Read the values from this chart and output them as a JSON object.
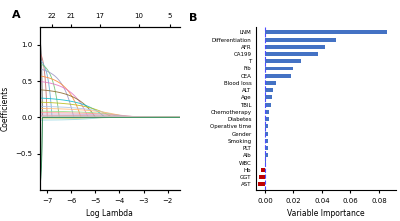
{
  "panel_A": {
    "xlabel": "Log Lambda",
    "ylabel": "Coefficients",
    "top_ticks": [
      22,
      21,
      17,
      10,
      5
    ],
    "top_tick_positions": [
      -6.8,
      -6.0,
      -4.8,
      -3.2,
      -1.9
    ],
    "xlim": [
      -7.3,
      -1.5
    ],
    "ylim": [
      -1.0,
      1.25
    ],
    "yticks": [
      -0.5,
      0.0,
      0.5,
      1.0
    ],
    "final_coeffs": [
      1.12,
      0.93,
      0.83,
      0.78,
      0.7,
      0.6,
      0.52,
      0.4,
      0.28,
      0.22,
      0.16,
      0.13,
      0.09,
      0.07,
      0.05,
      0.03,
      0.02,
      0.01,
      -0.02,
      -0.04,
      -0.85,
      -0.97
    ],
    "entry_points": [
      -7.2,
      -7.0,
      -6.8,
      -6.5,
      -5.9,
      -5.6,
      -5.3,
      -5.0,
      -4.6,
      -4.3,
      -4.0,
      -3.7,
      -3.5,
      -3.2,
      -3.0,
      -2.8,
      -2.6,
      -2.4,
      -4.4,
      -4.7,
      -7.2,
      -7.2
    ],
    "colors": [
      "#5a5a5a",
      "#c87070",
      "#6baed6",
      "#74c476",
      "#9e9ac8",
      "#fd8d3c",
      "#e377c2",
      "#8c6d31",
      "#17becf",
      "#bcbd22",
      "#aec7e8",
      "#ffbb78",
      "#98df8a",
      "#ff9896",
      "#c5b0d5",
      "#c49c94",
      "#f7b6d2",
      "#c7c7c7",
      "#dbdb8d",
      "#9edae5",
      "#8fbc8f",
      "#2e8b57"
    ]
  },
  "panel_B": {
    "xlabel": "Variable Importance",
    "labels": [
      "LNM",
      "Differentiation",
      "AFR",
      "CA199",
      "T",
      "Fib",
      "CEA",
      "Blood loss",
      "ALT",
      "Age",
      "TBIL",
      "Chemotherapy",
      "Diabetes",
      "Operative time",
      "Gender",
      "Smoking",
      "PLT",
      "Alb",
      "WBC",
      "Hb",
      "GGT",
      "AST"
    ],
    "values": [
      0.086,
      0.05,
      0.042,
      0.037,
      0.025,
      0.02,
      0.018,
      0.008,
      0.006,
      0.005,
      0.004,
      0.003,
      0.003,
      0.002,
      0.002,
      0.002,
      0.002,
      0.002,
      0.001,
      -0.003,
      -0.004,
      -0.005
    ],
    "bar_color_pos": "#4472c4",
    "bar_color_neg": "#c00000",
    "dashed_line_color": "#4d4dff",
    "xlim": [
      -0.006,
      0.092
    ],
    "xticks": [
      0.0,
      0.02,
      0.04,
      0.06,
      0.08
    ]
  }
}
